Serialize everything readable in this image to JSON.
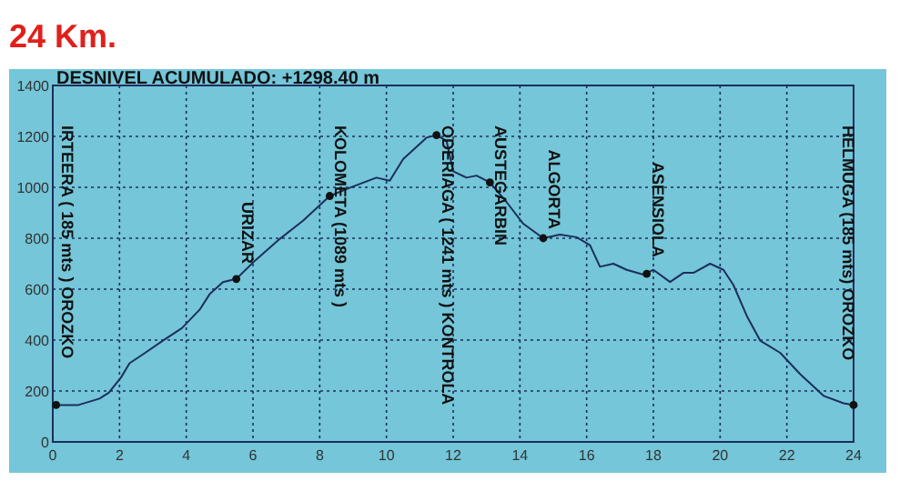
{
  "chart_data": {
    "type": "line",
    "title": "24 Km.",
    "subtitle": "DESNIVEL ACUMULADO:  +1298.40 m",
    "series": [
      {
        "color": "#1c2e5c",
        "x": [
          0.1,
          0.77,
          1.4,
          1.68,
          2.05,
          2.3,
          2.77,
          3.3,
          3.87,
          4.4,
          4.7,
          5.1,
          5.5,
          6.06,
          6.8,
          7.5,
          8.3,
          8.98,
          9.7,
          10.1,
          10.5,
          11.2,
          11.5,
          11.8,
          12,
          12.4,
          12.7,
          13.1,
          13.6,
          14.1,
          14.7,
          15.2,
          15.7,
          16.1,
          16.4,
          16.8,
          17.2,
          17.7,
          18,
          18.5,
          18.9,
          19.2,
          19.7,
          20.1,
          20.4,
          20.8,
          21.2,
          21.8,
          22.4,
          23.1,
          23.7,
          24
        ],
        "values": [
          145,
          145,
          170,
          193,
          254,
          309,
          350,
          398,
          447,
          519,
          580,
          628,
          640,
          712,
          797,
          869,
          966,
          1002,
          1038,
          1026,
          1111,
          1195,
          1205,
          1183,
          1063,
          1038,
          1046,
          1019,
          942,
          857,
          800,
          814,
          804,
          773,
          688,
          700,
          676,
          657,
          676,
          628,
          664,
          664,
          700,
          676,
          616,
          495,
          398,
          350,
          266,
          181,
          152,
          145
        ]
      }
    ],
    "annotations": [
      {
        "text": "IRTEERA ( 185 mts ) OROZKO",
        "x": 0.1,
        "y": 145
      },
      {
        "text": "URIZAR",
        "x": 5.5,
        "y": 640
      },
      {
        "text": "KOLOMETA (1089 mts )",
        "x": 8.3,
        "y": 966
      },
      {
        "text": "ODERIAGA ( 1241 mts ) KONTROLA",
        "x": 11.5,
        "y": 1205
      },
      {
        "text": "AUSTEGARBIN",
        "x": 13.1,
        "y": 1019
      },
      {
        "text": "ALGORTA",
        "x": 14.7,
        "y": 800
      },
      {
        "text": "ASENSIOLA",
        "x": 17.8,
        "y": 660
      },
      {
        "text": "HELMUGA (185 mts) OROZKO",
        "x": 24,
        "y": 145
      }
    ],
    "xlim": [
      0,
      24
    ],
    "xticks": [
      0,
      2,
      4,
      6,
      8,
      10,
      12,
      14,
      16,
      18,
      20,
      22,
      24
    ],
    "ylim": [
      0,
      1400
    ],
    "yticks": [
      0,
      200,
      400,
      600,
      800,
      1000,
      1200,
      1400
    ],
    "grid": true,
    "marker": "none",
    "line_style": "solid"
  }
}
